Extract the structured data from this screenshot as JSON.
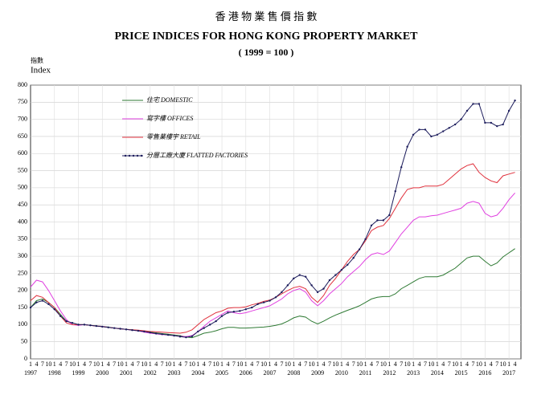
{
  "chart_data": {
    "type": "line",
    "title_zh": "香 港 物 業 售 價 指 數",
    "title": "PRICE INDICES FOR HONG KONG PROPERTY MARKET",
    "subtitle": "( 1999 = 100 )",
    "y_label_zh": "指數",
    "y_label": "Index",
    "categories": [
      "1",
      "4",
      "7",
      "10",
      "1",
      "4",
      "7",
      "10",
      "1",
      "4",
      "7",
      "10",
      "1",
      "4",
      "7",
      "10",
      "1",
      "4",
      "7",
      "10",
      "1",
      "4",
      "7",
      "10",
      "1",
      "4",
      "7",
      "10",
      "1",
      "4",
      "7",
      "10",
      "1",
      "4",
      "7",
      "10",
      "1",
      "4",
      "7",
      "10",
      "1",
      "4",
      "7",
      "10",
      "1",
      "4",
      "7",
      "10",
      "1",
      "4",
      "7",
      "10",
      "1",
      "4",
      "7",
      "10",
      "1",
      "4",
      "7",
      "10",
      "1",
      "4",
      "7",
      "10",
      "1",
      "4",
      "7",
      "10",
      "1",
      "4",
      "7",
      "10",
      "1",
      "4",
      "7",
      "10",
      "1",
      "4",
      "7",
      "10",
      "1",
      "4"
    ],
    "years": [
      "1997",
      "1998",
      "1999",
      "2000",
      "2001",
      "2002",
      "2003",
      "2004",
      "2005",
      "2006",
      "2007",
      "2008",
      "2009",
      "2010",
      "2011",
      "2012",
      "2013",
      "2014",
      "2015",
      "2016",
      "2017"
    ],
    "ylim": [
      0,
      800
    ],
    "yticks": [
      0,
      50,
      100,
      150,
      200,
      250,
      300,
      350,
      400,
      450,
      500,
      550,
      600,
      650,
      700,
      750,
      800
    ],
    "grid": true,
    "series": [
      {
        "name": "住宅 DOMESTIC",
        "color": "#2f7a34",
        "markers": false,
        "values": [
          150,
          170,
          175,
          165,
          150,
          130,
          110,
          105,
          100,
          100,
          98,
          97,
          95,
          93,
          90,
          88,
          86,
          85,
          83,
          80,
          78,
          76,
          74,
          72,
          70,
          68,
          64,
          62,
          68,
          75,
          78,
          82,
          88,
          92,
          92,
          90,
          90,
          91,
          92,
          93,
          95,
          98,
          102,
          110,
          120,
          125,
          122,
          110,
          102,
          110,
          120,
          128,
          135,
          142,
          148,
          155,
          165,
          175,
          180,
          182,
          182,
          190,
          205,
          215,
          225,
          235,
          240,
          240,
          240,
          245,
          255,
          265,
          280,
          295,
          300,
          300,
          285,
          272,
          280,
          298,
          310,
          322
        ]
      },
      {
        "name": "寫字樓 OFFICES",
        "color": "#e040e0",
        "markers": false,
        "values": [
          210,
          230,
          225,
          200,
          170,
          140,
          115,
          100,
          98,
          100,
          98,
          96,
          95,
          92,
          90,
          88,
          86,
          84,
          82,
          78,
          75,
          73,
          71,
          70,
          68,
          66,
          65,
          68,
          80,
          95,
          110,
          120,
          130,
          140,
          135,
          132,
          135,
          140,
          145,
          150,
          155,
          165,
          175,
          190,
          200,
          205,
          195,
          170,
          155,
          170,
          190,
          205,
          220,
          240,
          255,
          270,
          290,
          305,
          310,
          305,
          315,
          340,
          365,
          385,
          405,
          415,
          415,
          418,
          420,
          425,
          430,
          435,
          440,
          455,
          460,
          455,
          425,
          415,
          420,
          440,
          465,
          485
        ]
      },
      {
        "name": "零售業樓宇 RETAIL",
        "color": "#e0303c",
        "markers": false,
        "values": [
          170,
          185,
          180,
          165,
          150,
          125,
          105,
          100,
          100,
          100,
          98,
          96,
          94,
          92,
          90,
          88,
          86,
          85,
          84,
          82,
          80,
          79,
          78,
          77,
          76,
          75,
          78,
          85,
          100,
          115,
          125,
          135,
          140,
          148,
          150,
          150,
          152,
          158,
          162,
          168,
          172,
          180,
          190,
          200,
          208,
          212,
          205,
          180,
          165,
          185,
          215,
          235,
          260,
          285,
          305,
          320,
          345,
          375,
          385,
          390,
          410,
          440,
          470,
          495,
          500,
          500,
          505,
          505,
          505,
          510,
          525,
          540,
          555,
          565,
          570,
          545,
          530,
          520,
          515,
          535,
          540,
          545
        ]
      },
      {
        "name": "分層工廠大廈 FLATTED FACTORIES",
        "color": "#1c1c5c",
        "markers": true,
        "values": [
          150,
          165,
          170,
          160,
          145,
          125,
          110,
          105,
          100,
          100,
          98,
          96,
          94,
          92,
          90,
          88,
          86,
          84,
          82,
          80,
          77,
          74,
          72,
          70,
          68,
          65,
          63,
          66,
          80,
          90,
          100,
          110,
          125,
          135,
          138,
          140,
          145,
          150,
          160,
          165,
          170,
          180,
          195,
          215,
          235,
          245,
          240,
          215,
          195,
          205,
          230,
          245,
          260,
          275,
          295,
          320,
          350,
          390,
          405,
          405,
          420,
          490,
          560,
          620,
          655,
          670,
          670,
          650,
          655,
          665,
          675,
          685,
          700,
          725,
          745,
          745,
          690,
          690,
          680,
          685,
          725,
          755
        ]
      }
    ]
  }
}
